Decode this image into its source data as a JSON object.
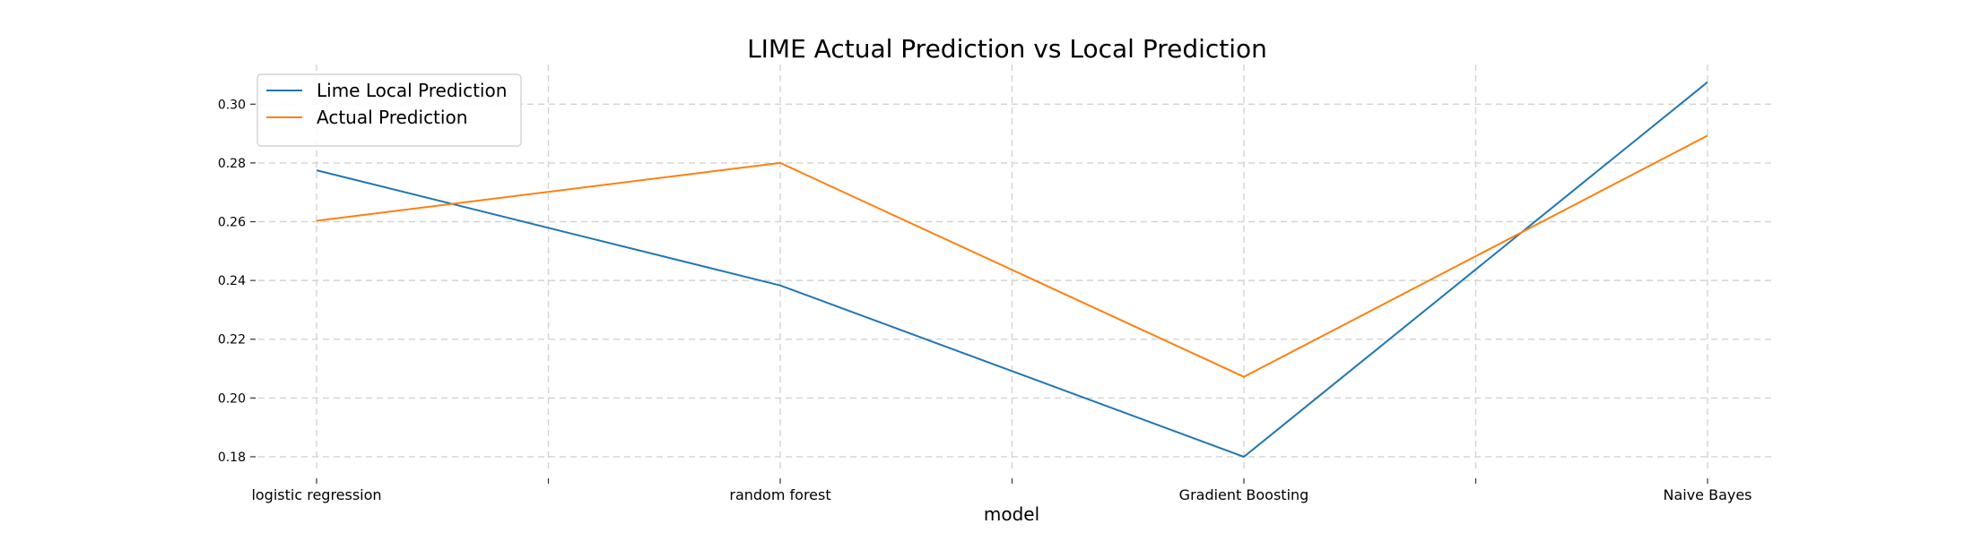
{
  "chart_data": {
    "type": "line",
    "title": "LIME Actual Prediction vs Local Prediction",
    "xlabel": "model",
    "ylabel": "",
    "categories": [
      "logistic regression",
      "random forest",
      "Gradient Boosting",
      "Naive Bayes"
    ],
    "series": [
      {
        "name": "Lime Local Prediction",
        "color": "#1f77b4",
        "values": [
          0.2775,
          0.2383,
          0.18,
          0.3075
        ]
      },
      {
        "name": "Actual Prediction",
        "color": "#ff7f0e",
        "values": [
          0.2603,
          0.28,
          0.2072,
          0.2893
        ]
      }
    ],
    "yticks": [
      "0.18",
      "0.20",
      "0.22",
      "0.24",
      "0.26",
      "0.28",
      "0.30"
    ],
    "ylim": [
      0.1745,
      0.3135
    ],
    "grid": true,
    "legend_position": "top-left",
    "grid_color": "#d3d3d3"
  }
}
